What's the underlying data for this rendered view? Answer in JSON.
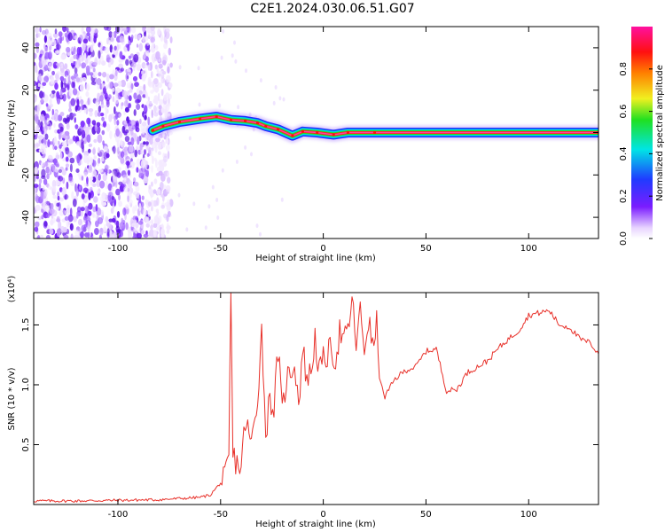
{
  "title": "C2E1.2024.030.06.51.G07",
  "colors": {
    "snr_line": "#e8312a",
    "background": "#ffffff"
  },
  "chart_data": [
    {
      "type": "heatmap",
      "title": "C2E1.2024.030.06.51.G07",
      "xlabel": "Height of straight line (km)",
      "ylabel": "Frequency (Hz)",
      "xlim": [
        -141,
        134
      ],
      "ylim": [
        -50,
        50
      ],
      "xticks": [
        -100,
        -50,
        0,
        50,
        100
      ],
      "yticks": [
        -40,
        -20,
        0,
        20,
        40
      ],
      "grid": false,
      "colorbar": {
        "label": "Normalized spectral amplitude",
        "range": [
          0.0,
          1.0
        ],
        "ticks": [
          0.0,
          0.2,
          0.4,
          0.6,
          0.8
        ],
        "colormap": "rainbow"
      },
      "noise_region": {
        "x": [
          -141,
          -78
        ],
        "freq": [
          -50,
          50
        ],
        "amplitude": "low (0.1-0.3)"
      },
      "ridge": [
        {
          "x": -83,
          "freq": 1
        },
        {
          "x": -78,
          "freq": 3
        },
        {
          "x": -70,
          "freq": 5
        },
        {
          "x": -60,
          "freq": 6.5
        },
        {
          "x": -52,
          "freq": 7.5
        },
        {
          "x": -45,
          "freq": 6
        },
        {
          "x": -38,
          "freq": 5.5
        },
        {
          "x": -32,
          "freq": 4.5
        },
        {
          "x": -28,
          "freq": 3
        },
        {
          "x": -22,
          "freq": 1.5
        },
        {
          "x": -15,
          "freq": -1.5
        },
        {
          "x": -10,
          "freq": 0.5
        },
        {
          "x": -3,
          "freq": 0
        },
        {
          "x": 5,
          "freq": -1
        },
        {
          "x": 12,
          "freq": 0
        },
        {
          "x": 25,
          "freq": 0
        },
        {
          "x": 134,
          "freq": 0
        }
      ]
    },
    {
      "type": "line",
      "xlabel": "Height of straight line (km)",
      "ylabel": "SNR (10 * v/v)",
      "y_multiplier": "(x10⁴)",
      "xlim": [
        -141,
        134
      ],
      "ylim": [
        0,
        1.77
      ],
      "xticks": [
        -100,
        -50,
        0,
        50,
        100
      ],
      "yticks": [
        0.5,
        1.0,
        1.5
      ],
      "grid": false,
      "series": [
        {
          "x": [
            -141,
            -120,
            -100,
            -80,
            -70,
            -60,
            -55,
            -50,
            -48,
            -46,
            -45,
            -44,
            -42,
            -40,
            -38,
            -35,
            -32,
            -30,
            -28,
            -26,
            -24,
            -22,
            -20,
            -18,
            -16,
            -14,
            -12,
            -10,
            -8,
            -6,
            -4,
            -2,
            0,
            2,
            4,
            6,
            8,
            10,
            12,
            14,
            16,
            18,
            20,
            22,
            24,
            26,
            28,
            30,
            35,
            40,
            45,
            50,
            55,
            60,
            65,
            70,
            75,
            80,
            85,
            90,
            95,
            100,
            105,
            110,
            115,
            120,
            125,
            130,
            134
          ],
          "y": [
            0.03,
            0.03,
            0.035,
            0.04,
            0.05,
            0.06,
            0.08,
            0.18,
            0.2,
            0.35,
            1.77,
            0.4,
            0.35,
            0.3,
            0.7,
            0.5,
            0.9,
            1.45,
            0.6,
            0.9,
            0.8,
            1.3,
            0.75,
            1.05,
            1.1,
            1.2,
            0.85,
            1.3,
            1.05,
            1.1,
            1.4,
            1.1,
            1.2,
            1.25,
            1.3,
            1.2,
            1.45,
            1.35,
            1.45,
            1.7,
            1.35,
            1.6,
            1.3,
            1.55,
            1.3,
            1.5,
            1.0,
            0.9,
            1.05,
            1.12,
            1.15,
            1.28,
            1.3,
            0.95,
            0.96,
            1.1,
            1.15,
            1.2,
            1.3,
            1.38,
            1.45,
            1.58,
            1.6,
            1.62,
            1.5,
            1.48,
            1.38,
            1.35,
            1.26
          ]
        }
      ]
    }
  ]
}
